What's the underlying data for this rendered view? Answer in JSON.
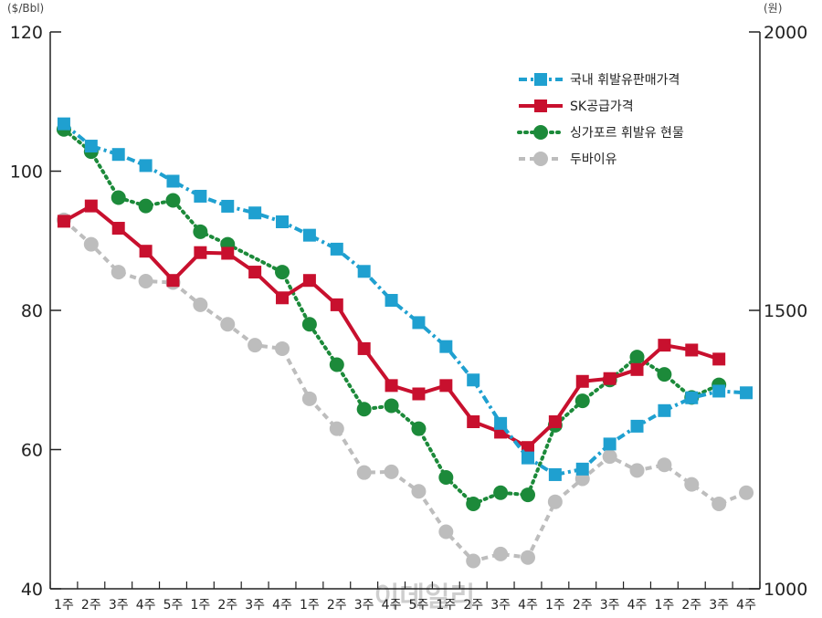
{
  "chart_data": {
    "type": "line",
    "title": "",
    "left_axis_unit": "($/Bbl)",
    "right_axis_unit": "(원)",
    "ylim_left": [
      40,
      120
    ],
    "ylim_right": [
      1000,
      2000
    ],
    "yticks_left": [
      "120",
      "100",
      "80",
      "60",
      "40"
    ],
    "yticks_right": [
      "2000",
      "1500",
      "1000"
    ],
    "categories": [
      "1주",
      "2주",
      "3주",
      "4주",
      "5주",
      "1주",
      "2주",
      "3주",
      "4주",
      "1주",
      "2주",
      "3주",
      "4주",
      "5주",
      "1주",
      "2주",
      "3주",
      "4주",
      "1주",
      "2주",
      "3주",
      "4주",
      "1주",
      "2주",
      "3주",
      "4주"
    ],
    "legend_position": "top-right",
    "grid": false,
    "series": [
      {
        "name": "국내 휘발유판매가격",
        "axis": "right",
        "color": "#1fa0d0",
        "marker": "square",
        "line_style": "dash-dot",
        "values": [
          1835,
          1795,
          1780,
          1760,
          1732,
          1705,
          1687,
          1675,
          1659,
          1635,
          1610,
          1570,
          1518,
          1478,
          1435,
          1375,
          1297,
          1235,
          1205,
          1215,
          1260,
          1292,
          1320,
          1343,
          1355,
          1352
        ]
      },
      {
        "name": "SK공급가격",
        "axis": "left",
        "color": "#c8102e",
        "marker": "square",
        "line_style": "solid",
        "values": [
          92.8,
          95.0,
          91.8,
          88.5,
          84.3,
          88.3,
          88.2,
          85.5,
          81.8,
          84.3,
          80.8,
          74.5,
          69.2,
          68.0,
          69.2,
          64.0,
          62.5,
          60.3,
          64.0,
          69.8,
          70.2,
          71.5,
          75.0,
          74.3,
          73.0,
          null
        ]
      },
      {
        "name": "싱가포르 휘발유 현물",
        "axis": "left",
        "color": "#1c8a3a",
        "marker": "circle",
        "line_style": "dotted",
        "values": [
          106.0,
          102.8,
          96.2,
          95.0,
          95.8,
          91.3,
          89.5,
          null,
          85.5,
          78.0,
          72.2,
          65.8,
          66.3,
          63.0,
          56.0,
          52.2,
          53.8,
          53.5,
          63.5,
          67.0,
          70.0,
          73.3,
          70.8,
          67.5,
          69.3,
          null
        ]
      },
      {
        "name": "두바이유",
        "axis": "left",
        "color": "#bdbdbd",
        "marker": "circle",
        "line_style": "dashed",
        "values": [
          93.0,
          89.5,
          85.5,
          84.2,
          84.0,
          80.8,
          78.0,
          75.0,
          74.5,
          67.3,
          63.0,
          56.7,
          56.8,
          54.0,
          48.2,
          44.0,
          45.0,
          44.5,
          52.5,
          55.8,
          59.0,
          57.0,
          57.8,
          55.0,
          52.2,
          53.8
        ]
      }
    ],
    "watermark": "이데일리"
  }
}
